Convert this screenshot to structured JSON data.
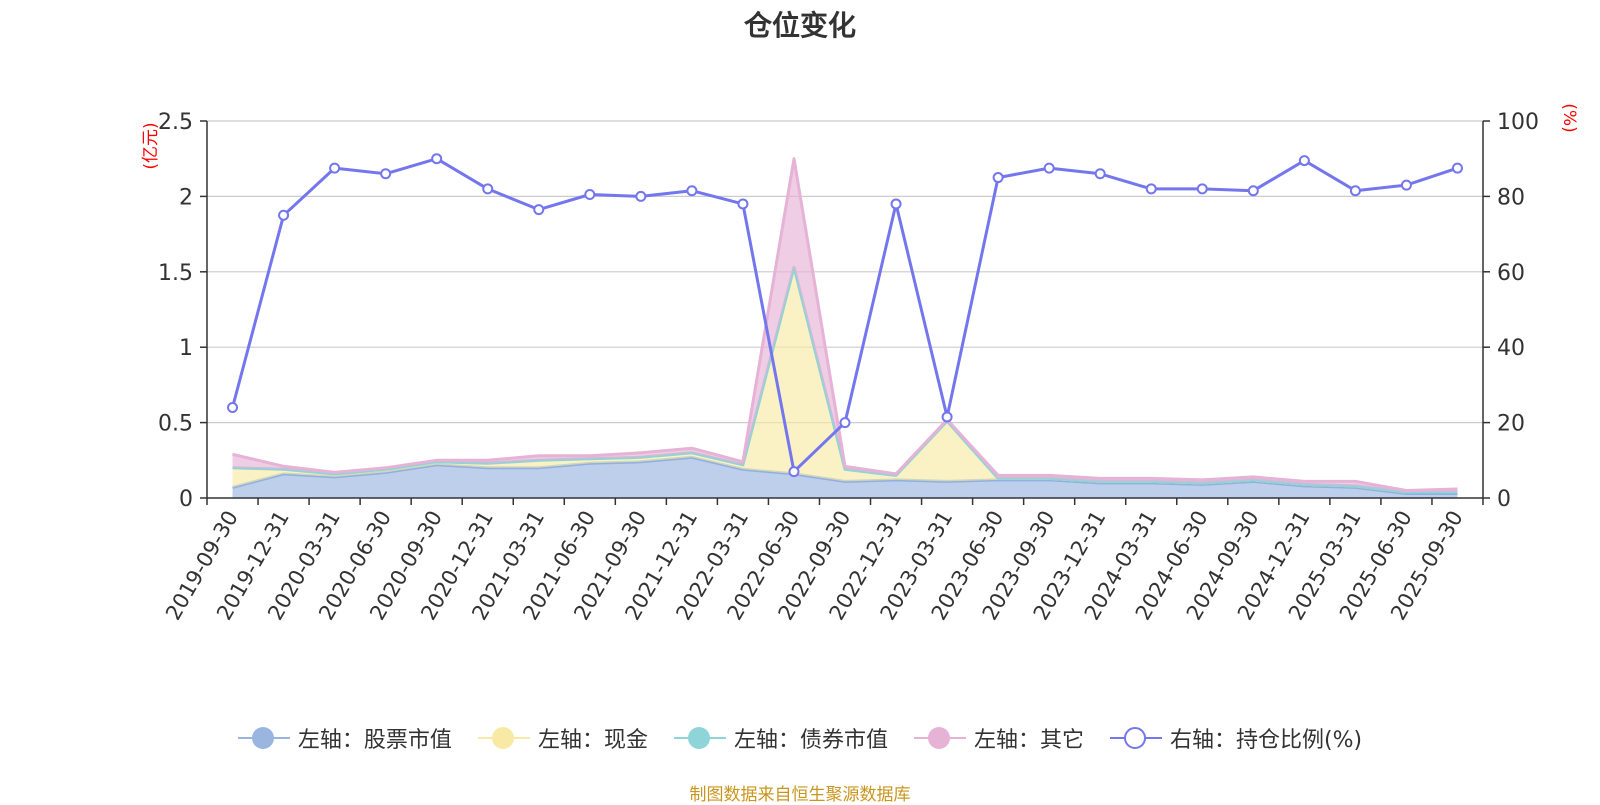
{
  "title": "仓位变化",
  "source": "制图数据来自恒生聚源数据库",
  "colors": {
    "stock": "#9ab5e0",
    "stock_line": "#8fb0e0",
    "cash": "#f8e9a5",
    "bond": "#8ed4d8",
    "other": "#e6b2d6",
    "ratio": "#7476ee",
    "axis_unit": "#ff0000",
    "grid": "#cccccc",
    "text": "#333333"
  },
  "legend": [
    {
      "key": "stock",
      "label": "左轴：股票市值"
    },
    {
      "key": "cash",
      "label": "左轴：现金"
    },
    {
      "key": "bond",
      "label": "左轴：债券市值"
    },
    {
      "key": "other",
      "label": "左轴：其它"
    },
    {
      "key": "ratio",
      "label": "右轴：持仓比例(%)"
    }
  ],
  "chart_data": {
    "type": "area+line",
    "title": "仓位变化",
    "left_axis": {
      "unit": "(亿元)",
      "min": 0,
      "max": 2.5,
      "ticks": [
        "0",
        "0.5",
        "1",
        "1.5",
        "2",
        "2.5"
      ]
    },
    "right_axis": {
      "unit": "(%)",
      "min": 0,
      "max": 100,
      "ticks": [
        "0",
        "20",
        "40",
        "60",
        "80",
        "100"
      ]
    },
    "categories": [
      "2019-09-30",
      "2019-12-31",
      "2020-03-31",
      "2020-06-30",
      "2020-09-30",
      "2020-12-31",
      "2021-03-31",
      "2021-06-30",
      "2021-09-30",
      "2021-12-31",
      "2022-03-31",
      "2022-06-30",
      "2022-09-30",
      "2022-12-31",
      "2023-03-31",
      "2023-06-30",
      "2023-09-30",
      "2023-12-31",
      "2024-03-31",
      "2024-06-30",
      "2024-09-30",
      "2024-12-31",
      "2025-03-31",
      "2025-06-30",
      "2025-09-30"
    ],
    "series": [
      {
        "key": "stock",
        "name": "左轴：股票市值",
        "axis": "left",
        "type": "stacked-area",
        "values": [
          0.07,
          0.16,
          0.14,
          0.17,
          0.22,
          0.2,
          0.2,
          0.23,
          0.24,
          0.27,
          0.19,
          0.16,
          0.11,
          0.12,
          0.11,
          0.12,
          0.12,
          0.1,
          0.1,
          0.09,
          0.11,
          0.08,
          0.07,
          0.03,
          0.03
        ]
      },
      {
        "key": "cash",
        "name": "左轴：现金",
        "axis": "left",
        "type": "stacked-area",
        "values": [
          0.13,
          0.03,
          0.02,
          0.02,
          0.02,
          0.03,
          0.05,
          0.03,
          0.03,
          0.03,
          0.03,
          1.37,
          0.08,
          0.03,
          0.4,
          0.01,
          0.01,
          0.01,
          0.01,
          0.01,
          0.01,
          0.01,
          0.01,
          0.01,
          0.01
        ]
      },
      {
        "key": "bond",
        "name": "左轴：债券市值",
        "axis": "left",
        "type": "stacked-area",
        "values": [
          0,
          0,
          0,
          0,
          0,
          0,
          0,
          0,
          0,
          0,
          0,
          0,
          0,
          0,
          0,
          0,
          0,
          0,
          0,
          0,
          0,
          0,
          0,
          0,
          0
        ]
      },
      {
        "key": "other",
        "name": "左轴：其它",
        "axis": "left",
        "type": "stacked-area",
        "values": [
          0.09,
          0.02,
          0.01,
          0.01,
          0.01,
          0.02,
          0.03,
          0.02,
          0.03,
          0.03,
          0.02,
          0.72,
          0.02,
          0.01,
          0.01,
          0.02,
          0.02,
          0.02,
          0.02,
          0.02,
          0.02,
          0.02,
          0.03,
          0.01,
          0.02
        ]
      },
      {
        "key": "ratio",
        "name": "右轴：持仓比例(%)",
        "axis": "right",
        "type": "line",
        "values": [
          24,
          75,
          87.5,
          86,
          90,
          82,
          76.5,
          80.5,
          80,
          81.5,
          78,
          7,
          20,
          78,
          21.5,
          85,
          87.5,
          86,
          82,
          82,
          81.5,
          89.5,
          81.5,
          83,
          87.5
        ]
      }
    ]
  }
}
